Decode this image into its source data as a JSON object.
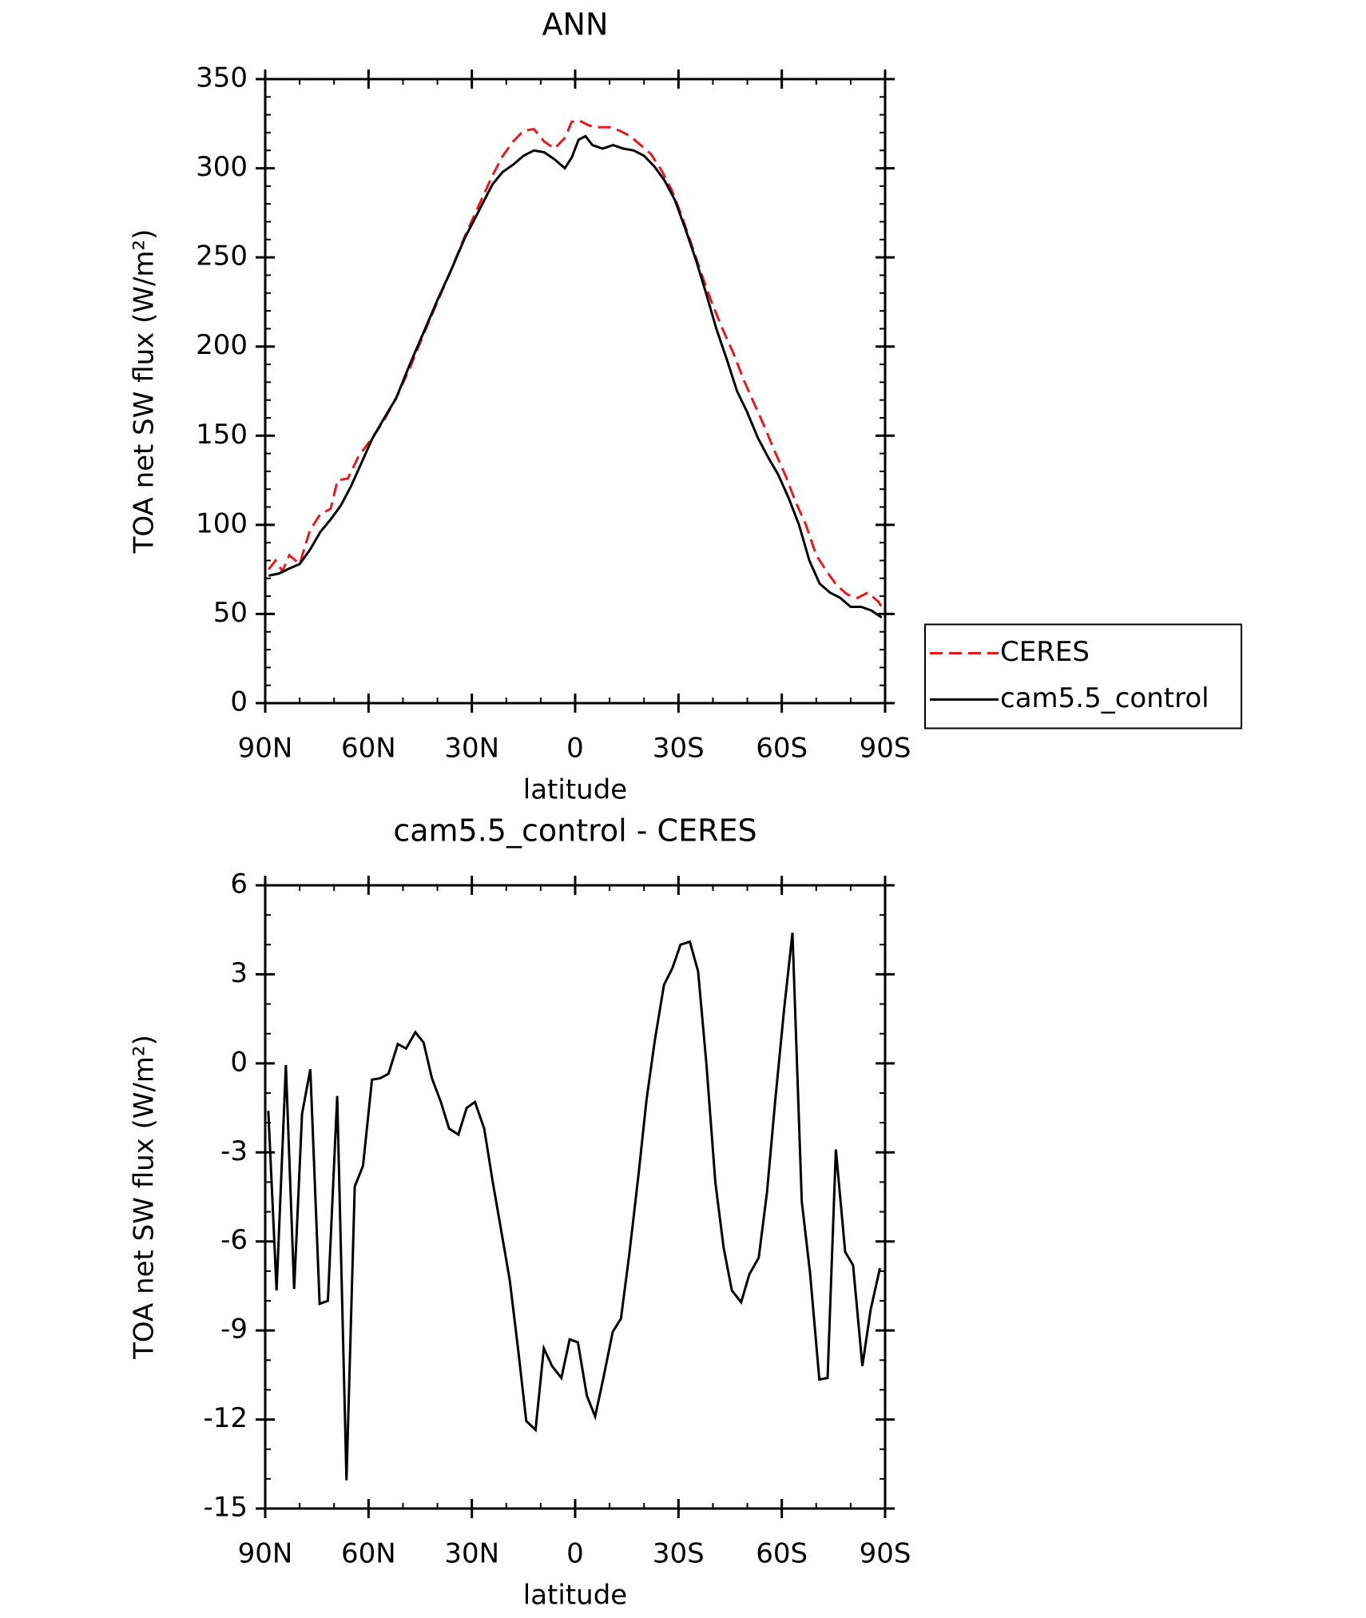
{
  "chart_data": [
    {
      "type": "line",
      "title": "ANN",
      "xlabel": "latitude",
      "ylabel": "TOA net SW flux (W/m²)",
      "xlim": [
        90,
        -90
      ],
      "xticks": [
        {
          "value": 90,
          "label": "90N"
        },
        {
          "value": 60,
          "label": "60N"
        },
        {
          "value": 30,
          "label": "30N"
        },
        0,
        {
          "value": -30,
          "label": "30S"
        },
        {
          "value": -60,
          "label": "60S"
        },
        {
          "value": -90,
          "label": "90S"
        }
      ],
      "ylim": [
        0,
        350
      ],
      "yticks": [
        0,
        50,
        100,
        150,
        200,
        250,
        300,
        350
      ],
      "legend": "right",
      "series": [
        {
          "name": "CERES",
          "color": "#e41a1c",
          "dashed": true,
          "x": [
            89,
            87,
            85,
            83,
            80,
            77,
            74,
            71,
            69,
            66,
            63,
            60,
            56,
            52,
            48,
            44,
            40,
            36,
            32,
            28,
            24,
            21,
            18,
            15,
            12,
            9,
            6,
            3,
            1,
            -1,
            -4,
            -7,
            -10,
            -13,
            -16,
            -19,
            -22,
            -25,
            -28,
            -31,
            -34,
            -37,
            -40,
            -43,
            -46,
            -49,
            -52,
            -55,
            -58,
            -61,
            -64,
            -67,
            -70,
            -73,
            -76,
            -79,
            -82,
            -85,
            -88,
            -89
          ],
          "values": [
            75,
            80,
            74,
            83,
            78,
            97,
            106,
            109,
            125,
            126,
            138,
            146,
            157,
            171,
            188,
            207,
            225,
            243,
            262,
            279,
            296,
            307,
            315,
            321,
            322,
            315,
            311,
            317,
            326,
            327,
            324,
            323,
            323,
            321,
            318,
            313,
            308,
            299,
            288,
            273,
            256,
            239,
            223,
            209,
            196,
            181,
            168,
            155,
            141,
            128,
            113,
            100,
            83,
            74,
            66,
            61,
            59,
            62,
            57,
            54
          ]
        },
        {
          "name": "cam5.5_control",
          "color": "#000000",
          "dashed": false,
          "x": [
            89,
            86,
            83,
            80,
            77,
            74,
            71,
            68,
            65,
            62,
            59,
            56,
            52,
            48,
            44,
            40,
            36,
            32,
            28,
            24,
            21,
            18,
            15,
            12,
            9,
            6,
            3,
            1,
            -1,
            -3,
            -5,
            -8,
            -11,
            -14,
            -17,
            -20,
            -23,
            -26,
            -29,
            -32,
            -35,
            -38,
            -41,
            -44,
            -47,
            -50,
            -53,
            -56,
            -59,
            -62,
            -65,
            -68,
            -71,
            -74,
            -77,
            -80,
            -83,
            -86,
            -89
          ],
          "values": [
            71.5,
            72.7,
            75.5,
            78,
            86,
            96,
            103,
            111,
            122,
            135,
            148,
            158,
            171,
            190,
            208,
            226,
            243,
            261,
            276,
            291,
            298,
            302,
            307,
            310,
            309,
            305,
            300,
            306,
            316,
            318,
            313,
            311,
            313,
            311,
            310,
            307,
            301,
            293,
            282,
            266,
            249,
            230,
            210,
            193,
            175,
            163,
            149,
            138,
            128,
            115,
            100,
            80,
            67,
            62,
            59,
            54,
            54,
            52,
            48
          ]
        }
      ]
    },
    {
      "type": "line",
      "title": "cam5.5_control - CERES",
      "xlabel": "latitude",
      "ylabel": "TOA net SW flux (W/m²)",
      "xlim": [
        90,
        -90
      ],
      "xticks": [
        {
          "value": 90,
          "label": "90N"
        },
        {
          "value": 60,
          "label": "60N"
        },
        {
          "value": 30,
          "label": "30N"
        },
        0,
        {
          "value": -30,
          "label": "30S"
        },
        {
          "value": -60,
          "label": "60S"
        },
        {
          "value": -90,
          "label": "90S"
        }
      ],
      "ylim": [
        -15,
        6
      ],
      "yticks": [
        -15,
        -12,
        -9,
        -6,
        -3,
        0,
        3,
        6
      ],
      "series": [
        {
          "color": "#000000",
          "x": [
            89.1,
            86.7,
            84.0,
            81.6,
            79.3,
            76.9,
            74.2,
            71.8,
            69.1,
            66.4,
            64.0,
            61.6,
            59.0,
            56.6,
            54.2,
            51.5,
            49.1,
            46.4,
            44.0,
            41.6,
            39.0,
            36.6,
            33.9,
            31.5,
            29.1,
            26.4,
            24.0,
            21.6,
            19.0,
            16.6,
            14.2,
            11.5,
            9.1,
            6.7,
            4.0,
            1.6,
            -0.8,
            -3.4,
            -5.8,
            -8.2,
            -10.9,
            -13.3,
            -15.7,
            -18.4,
            -20.7,
            -23.1,
            -25.8,
            -28.2,
            -30.6,
            -33.3,
            -35.7,
            -38.1,
            -40.7,
            -43.1,
            -45.5,
            -48.2,
            -50.6,
            -53.3,
            -55.7,
            -58.1,
            -60.7,
            -63.1,
            -65.8,
            -68.2,
            -70.9,
            -73.3,
            -75.7,
            -78.4,
            -80.7,
            -83.4,
            -85.8,
            -88.5
          ],
          "values": [
            -1.6,
            -7.65,
            -0.06,
            -7.6,
            -1.7,
            -0.2,
            -8.1,
            -8.0,
            -1.1,
            -14.05,
            -4.15,
            -3.45,
            -0.55,
            -0.5,
            -0.35,
            0.65,
            0.5,
            1.05,
            0.7,
            -0.5,
            -1.3,
            -2.2,
            -2.4,
            -1.5,
            -1.3,
            -2.2,
            -3.95,
            -5.55,
            -7.3,
            -9.6,
            -12.05,
            -12.35,
            -9.6,
            -10.2,
            -10.6,
            -9.3,
            -9.4,
            -11.2,
            -11.9,
            -10.6,
            -9.05,
            -8.6,
            -6.45,
            -3.75,
            -1.25,
            0.75,
            2.65,
            3.2,
            4.0,
            4.1,
            3.1,
            0.0,
            -4.0,
            -6.2,
            -7.65,
            -8.05,
            -7.1,
            -6.55,
            -4.35,
            -1.25,
            1.85,
            4.4,
            -4.65,
            -7.05,
            -10.65,
            -10.6,
            -2.9,
            -6.35,
            -6.8,
            -10.2,
            -8.3,
            -6.9
          ]
        }
      ]
    }
  ]
}
